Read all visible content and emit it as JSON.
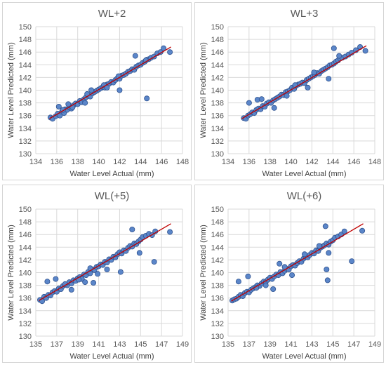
{
  "chart_data": [
    {
      "type": "scatter",
      "title": "WL+2",
      "xlabel": "Water Level Actual (mm)",
      "ylabel": "Water Level Predicted (mm)",
      "xlim": [
        134,
        148
      ],
      "ylim": [
        130,
        150
      ],
      "xticks": [
        134,
        136,
        138,
        140,
        142,
        144,
        146,
        148
      ],
      "yticks": [
        130,
        132,
        134,
        136,
        138,
        140,
        142,
        144,
        146,
        148,
        150
      ],
      "grid": true,
      "legend": "none",
      "trendline": {
        "x": [
          135.3,
          146.9
        ],
        "y": [
          135.5,
          146.8
        ]
      },
      "series": [
        {
          "x": [
            135.4,
            135.6,
            135.9,
            136.1,
            136.3,
            136.5,
            136.7,
            136.8,
            137.0,
            137.2,
            137.4,
            137.6,
            137.8,
            138.0,
            138.2,
            138.4,
            138.6,
            138.8,
            139.0,
            139.2,
            139.4,
            139.6,
            139.8,
            140.0,
            140.2,
            140.4,
            140.6,
            140.8,
            141.0,
            141.2,
            141.4,
            141.6,
            141.8,
            142.0,
            142.2,
            142.4,
            142.6,
            142.8,
            143.0,
            143.2,
            143.4,
            143.6,
            143.8,
            144.0,
            144.2,
            144.4,
            144.6,
            144.8,
            145.0,
            145.3,
            145.6,
            145.9,
            146.2,
            146.8,
            136.2,
            137.1,
            138.7,
            139.3,
            140.5,
            141.9,
            143.5,
            144.5,
            144.6,
            142.0,
            136.6,
            137.5,
            138.9,
            140.8
          ],
          "y": [
            135.7,
            135.5,
            135.9,
            136.3,
            136.0,
            136.6,
            136.4,
            137.0,
            136.9,
            137.3,
            137.1,
            137.6,
            137.9,
            137.8,
            138.3,
            138.1,
            138.6,
            138.9,
            139.1,
            139.0,
            139.5,
            139.7,
            139.9,
            140.1,
            140.3,
            140.5,
            140.4,
            140.9,
            141.0,
            141.3,
            141.2,
            141.6,
            141.9,
            141.8,
            142.3,
            142.4,
            142.6,
            142.9,
            143.0,
            143.3,
            143.2,
            143.7,
            143.9,
            144.0,
            144.3,
            144.5,
            144.8,
            144.9,
            145.1,
            145.3,
            145.8,
            146.0,
            146.6,
            146.0,
            137.4,
            137.8,
            138.0,
            140.0,
            140.8,
            142.2,
            145.4,
            144.7,
            138.7,
            140.0,
            136.9,
            137.3,
            139.4,
            140.4
          ]
        }
      ]
    },
    {
      "type": "scatter",
      "title": "WL+3",
      "xlabel": "Water Level Actual (mm)",
      "ylabel": "Water Level Predicted (mm)",
      "xlim": [
        134,
        148
      ],
      "ylim": [
        130,
        150
      ],
      "xticks": [
        134,
        136,
        138,
        140,
        142,
        144,
        146,
        148
      ],
      "yticks": [
        130,
        132,
        134,
        136,
        138,
        140,
        142,
        144,
        146,
        148,
        150
      ],
      "grid": true,
      "legend": "none",
      "trendline": {
        "x": [
          135.3,
          147.2
        ],
        "y": [
          135.5,
          147.0
        ]
      },
      "series": [
        {
          "x": [
            135.5,
            135.7,
            135.9,
            136.1,
            136.3,
            136.5,
            136.7,
            136.9,
            137.1,
            137.3,
            137.5,
            137.7,
            137.9,
            138.1,
            138.3,
            138.5,
            138.7,
            138.9,
            139.1,
            139.3,
            139.5,
            139.7,
            139.9,
            140.1,
            140.3,
            140.5,
            140.7,
            140.9,
            141.1,
            141.3,
            141.5,
            141.7,
            141.9,
            142.1,
            142.3,
            142.5,
            142.7,
            142.9,
            143.1,
            143.3,
            143.5,
            143.7,
            143.9,
            144.1,
            144.3,
            144.5,
            144.7,
            144.9,
            145.2,
            145.5,
            145.8,
            146.2,
            146.6,
            147.1,
            136.0,
            136.8,
            138.4,
            139.6,
            140.4,
            141.6,
            143.6,
            144.1,
            144.6,
            142.2,
            137.2
          ],
          "y": [
            135.6,
            135.5,
            136.0,
            136.2,
            136.5,
            136.4,
            136.9,
            137.1,
            137.0,
            137.5,
            137.4,
            137.9,
            138.1,
            138.0,
            138.4,
            138.6,
            138.8,
            139.0,
            139.3,
            139.2,
            139.7,
            139.8,
            140.0,
            140.4,
            140.2,
            140.7,
            140.9,
            141.0,
            141.2,
            141.1,
            141.6,
            141.8,
            142.0,
            142.2,
            142.4,
            142.7,
            142.6,
            143.0,
            143.2,
            143.4,
            143.6,
            143.9,
            144.0,
            144.2,
            144.5,
            144.7,
            145.0,
            145.1,
            145.3,
            145.6,
            145.9,
            146.3,
            146.8,
            146.2,
            138.0,
            138.5,
            137.2,
            139.1,
            140.8,
            140.4,
            141.8,
            146.6,
            145.4,
            142.8,
            138.6
          ]
        }
      ]
    },
    {
      "type": "scatter",
      "title": "WL(+5)",
      "xlabel": "Water Level Actual (mm)",
      "ylabel": "Water Level Predicted (mm)",
      "xlim": [
        135,
        149
      ],
      "ylim": [
        130,
        150
      ],
      "xticks": [
        135,
        137,
        139,
        141,
        143,
        145,
        147,
        149
      ],
      "yticks": [
        130,
        132,
        134,
        136,
        138,
        140,
        142,
        144,
        146,
        148,
        150
      ],
      "grid": true,
      "legend": "none",
      "trendline": {
        "x": [
          135.3,
          147.9
        ],
        "y": [
          135.6,
          147.7
        ]
      },
      "series": [
        {
          "x": [
            135.4,
            135.6,
            135.8,
            136.0,
            136.2,
            136.4,
            136.6,
            136.8,
            137.0,
            137.2,
            137.4,
            137.6,
            137.8,
            138.0,
            138.2,
            138.4,
            138.6,
            138.8,
            139.0,
            139.2,
            139.4,
            139.6,
            139.8,
            140.0,
            140.2,
            140.4,
            140.6,
            140.8,
            141.0,
            141.2,
            141.4,
            141.6,
            141.8,
            142.0,
            142.2,
            142.4,
            142.6,
            142.8,
            143.0,
            143.2,
            143.4,
            143.6,
            143.8,
            144.0,
            144.2,
            144.4,
            144.6,
            144.8,
            145.0,
            145.2,
            145.5,
            145.8,
            146.1,
            146.4,
            147.8,
            136.1,
            136.9,
            138.4,
            139.7,
            140.5,
            140.9,
            141.8,
            143.1,
            144.2,
            144.9,
            146.3,
            137.8,
            139.1,
            140.2
          ],
          "y": [
            135.7,
            135.5,
            136.2,
            136.0,
            136.5,
            136.4,
            136.9,
            137.1,
            137.0,
            137.5,
            137.4,
            137.9,
            138.1,
            138.0,
            138.5,
            138.3,
            138.8,
            138.7,
            139.1,
            139.3,
            139.0,
            139.7,
            139.6,
            140.1,
            139.9,
            140.5,
            140.4,
            140.9,
            141.0,
            141.3,
            141.2,
            141.7,
            141.6,
            142.1,
            142.0,
            142.5,
            142.4,
            142.9,
            143.2,
            143.0,
            143.5,
            143.4,
            143.9,
            144.2,
            144.1,
            144.6,
            144.5,
            144.9,
            145.2,
            145.6,
            145.8,
            146.1,
            145.9,
            146.5,
            146.4,
            138.6,
            139.0,
            137.3,
            138.5,
            138.4,
            139.8,
            140.5,
            140.1,
            146.8,
            143.1,
            141.7,
            138.2,
            138.9,
            140.7
          ]
        }
      ]
    },
    {
      "type": "scatter",
      "title": "WL(+6)",
      "xlabel": "Water Level Actual (mm)",
      "ylabel": "Water Level Predicted (mm)",
      "xlim": [
        135,
        149
      ],
      "ylim": [
        130,
        150
      ],
      "xticks": [
        135,
        137,
        139,
        141,
        143,
        145,
        147,
        149
      ],
      "yticks": [
        130,
        132,
        134,
        136,
        138,
        140,
        142,
        144,
        146,
        148,
        150
      ],
      "grid": true,
      "legend": "none",
      "trendline": {
        "x": [
          135.3,
          147.9
        ],
        "y": [
          135.5,
          147.7
        ]
      },
      "series": [
        {
          "x": [
            135.4,
            135.6,
            135.8,
            136.0,
            136.2,
            136.4,
            136.6,
            136.8,
            137.0,
            137.2,
            137.4,
            137.6,
            137.8,
            138.0,
            138.2,
            138.4,
            138.6,
            138.8,
            139.0,
            139.2,
            139.4,
            139.6,
            139.8,
            140.0,
            140.2,
            140.4,
            140.6,
            140.8,
            141.0,
            141.2,
            141.4,
            141.6,
            141.8,
            142.0,
            142.2,
            142.4,
            142.6,
            142.8,
            143.0,
            143.2,
            143.4,
            143.6,
            143.8,
            144.0,
            144.2,
            144.4,
            144.6,
            144.8,
            145.0,
            145.2,
            145.5,
            145.8,
            146.1,
            147.8,
            136.0,
            136.9,
            137.7,
            138.6,
            139.3,
            140.4,
            141.1,
            142.3,
            144.3,
            144.4,
            144.5,
            144.6,
            146.8,
            139.9,
            143.7
          ],
          "y": [
            135.6,
            135.8,
            135.9,
            136.2,
            136.5,
            136.3,
            136.8,
            137.0,
            136.9,
            137.3,
            137.5,
            137.7,
            138.0,
            137.9,
            138.3,
            138.6,
            138.5,
            138.9,
            139.2,
            139.0,
            139.4,
            139.7,
            139.6,
            140.1,
            139.9,
            140.3,
            140.6,
            140.5,
            141.0,
            141.2,
            141.1,
            141.5,
            141.8,
            141.7,
            142.2,
            142.5,
            142.4,
            142.8,
            143.1,
            143.0,
            143.5,
            143.4,
            143.9,
            144.1,
            144.3,
            144.6,
            144.4,
            144.9,
            145.1,
            145.5,
            145.7,
            146.0,
            146.5,
            146.6,
            138.6,
            139.4,
            137.6,
            138.0,
            137.4,
            140.9,
            139.6,
            142.9,
            147.3,
            140.5,
            138.8,
            143.1,
            141.8,
            141.4,
            144.2
          ]
        }
      ]
    }
  ]
}
